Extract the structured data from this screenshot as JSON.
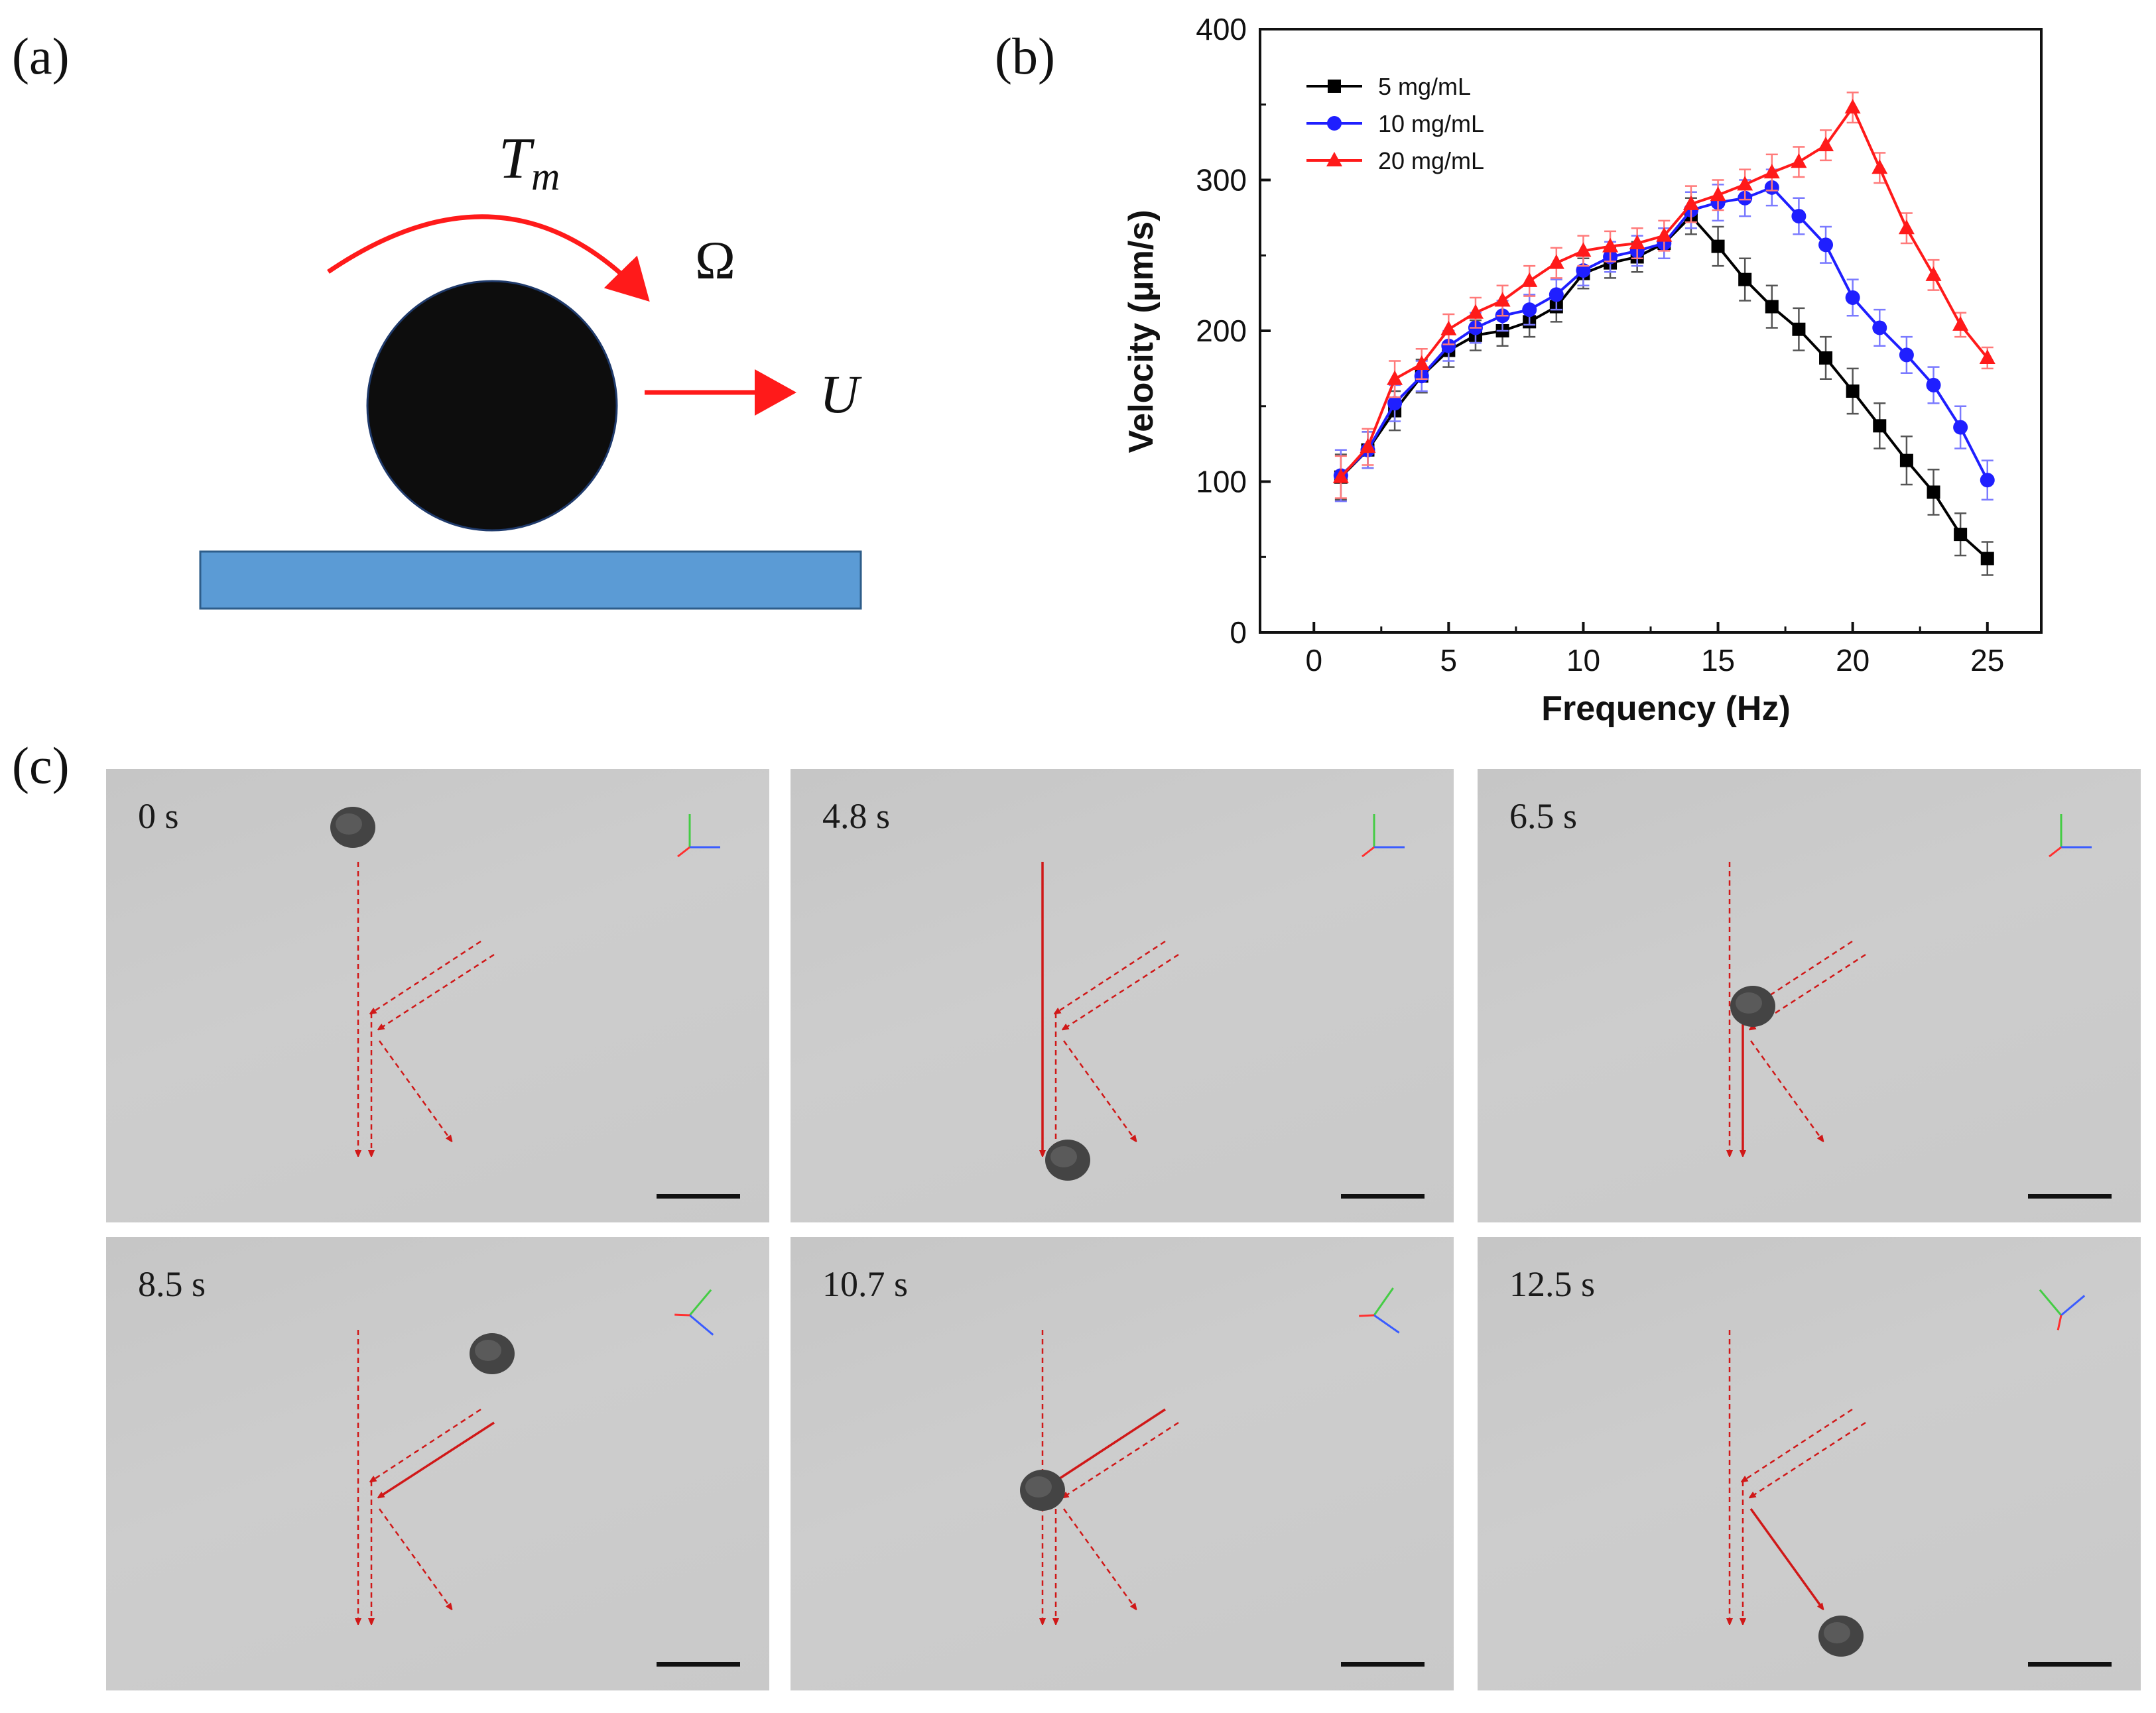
{
  "panel_labels": {
    "a": "(a)",
    "b": "(b)",
    "c": "(c)"
  },
  "diagram_a": {
    "torque_label": "T",
    "torque_subscript": "m",
    "angular_label": "Ω",
    "velocity_label": "U",
    "colors": {
      "particle": "#0d0d0d",
      "surface": "#5b9bd5",
      "arrows": "#ff1a1a"
    }
  },
  "chart_data": {
    "type": "line",
    "xlabel": "Frequency (Hz)",
    "ylabel": "Velocity (μm/s)",
    "xlim": [
      -2,
      27
    ],
    "ylim": [
      0,
      400
    ],
    "xticks": [
      0,
      5,
      10,
      15,
      20,
      25
    ],
    "yticks": [
      0,
      100,
      200,
      300,
      400
    ],
    "legend_position": "top-left",
    "grid": false,
    "x": [
      1,
      2,
      3,
      4,
      5,
      6,
      7,
      8,
      9,
      10,
      11,
      12,
      13,
      14,
      15,
      16,
      17,
      18,
      19,
      20,
      21,
      22,
      23,
      24,
      25
    ],
    "series": [
      {
        "name": "5 mg/mL",
        "color": "#000000",
        "marker": "square",
        "values": [
          103,
          121,
          147,
          170,
          187,
          197,
          200,
          206,
          216,
          238,
          245,
          249,
          258,
          276,
          256,
          234,
          216,
          201,
          182,
          160,
          137,
          114,
          93,
          65,
          49
        ],
        "errors": [
          15,
          12,
          13,
          11,
          11,
          10,
          10,
          10,
          10,
          10,
          10,
          10,
          10,
          12,
          13,
          14,
          14,
          14,
          14,
          15,
          15,
          16,
          15,
          14,
          11
        ]
      },
      {
        "name": "10 mg/mL",
        "color": "#1f1fff",
        "marker": "circle",
        "values": [
          104,
          121,
          152,
          170,
          190,
          202,
          210,
          214,
          224,
          240,
          249,
          253,
          258,
          280,
          285,
          288,
          295,
          276,
          257,
          222,
          202,
          184,
          164,
          136,
          101
        ],
        "errors": [
          17,
          12,
          12,
          10,
          10,
          10,
          10,
          10,
          10,
          10,
          10,
          10,
          10,
          12,
          12,
          12,
          12,
          12,
          12,
          12,
          12,
          12,
          12,
          14,
          13
        ]
      },
      {
        "name": "20 mg/mL",
        "color": "#ff1a1a",
        "marker": "triangle",
        "values": [
          103,
          123,
          168,
          178,
          201,
          212,
          220,
          233,
          245,
          253,
          256,
          258,
          263,
          284,
          290,
          297,
          305,
          312,
          323,
          348,
          308,
          268,
          237,
          204,
          182
        ],
        "errors": [
          14,
          12,
          12,
          10,
          10,
          10,
          10,
          10,
          10,
          10,
          10,
          10,
          10,
          12,
          10,
          10,
          12,
          10,
          10,
          10,
          10,
          10,
          10,
          8,
          7
        ]
      }
    ]
  },
  "frames": [
    {
      "time": "0 s"
    },
    {
      "time": "4.8 s"
    },
    {
      "time": "6.5 s"
    },
    {
      "time": "8.5 s"
    },
    {
      "time": "10.7 s"
    },
    {
      "time": "12.5 s"
    }
  ]
}
